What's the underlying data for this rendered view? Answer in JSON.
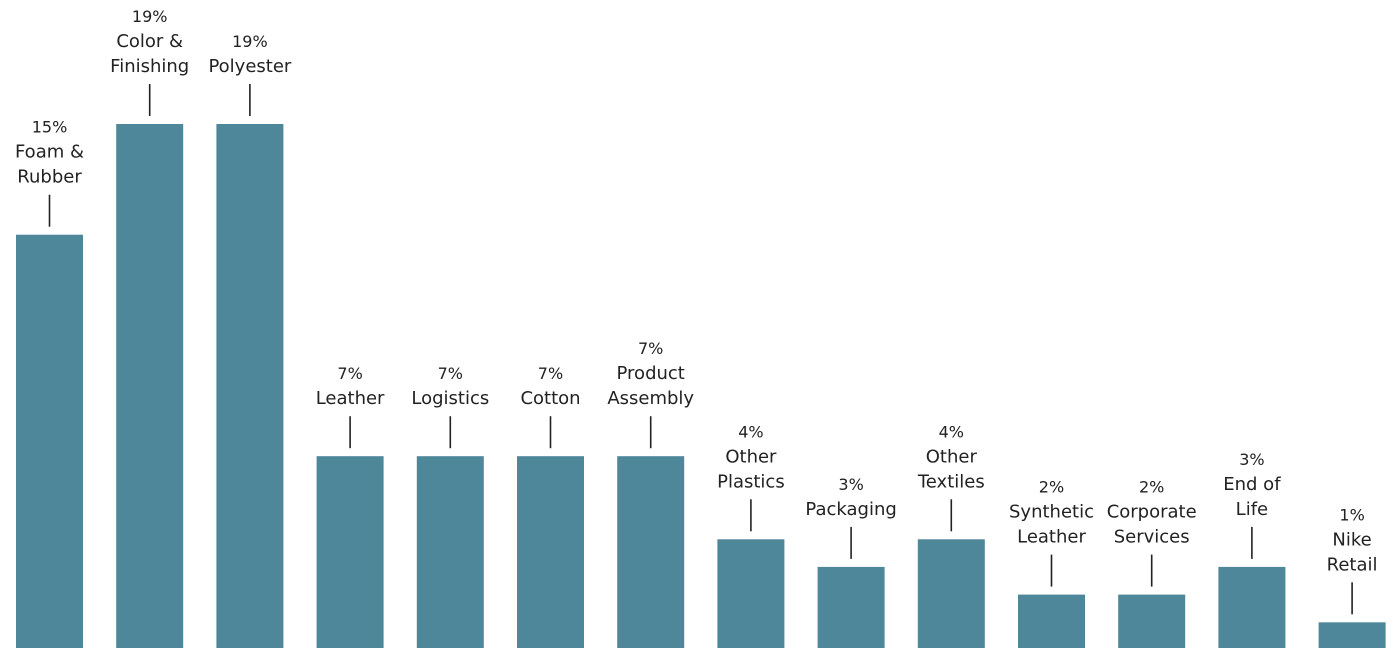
{
  "colors": {
    "bar": "#4e8799",
    "leader": "#222222",
    "text": "#222222"
  },
  "chart_data": {
    "type": "bar",
    "title": "",
    "xlabel": "",
    "ylabel": "",
    "ylim": [
      0,
      19
    ],
    "grid": false,
    "legend": "none",
    "categories": [
      [
        "Foam &",
        "Rubber"
      ],
      [
        "Color &",
        "Finishing"
      ],
      [
        "Polyester"
      ],
      [
        "Leather"
      ],
      [
        "Logistics"
      ],
      [
        "Cotton"
      ],
      [
        "Product",
        "Assembly"
      ],
      [
        "Other",
        "Plastics"
      ],
      [
        "Packaging"
      ],
      [
        "Other",
        "Textiles"
      ],
      [
        "Synthetic",
        "Leather"
      ],
      [
        "Corporate",
        "Services"
      ],
      [
        "End of",
        "Life"
      ],
      [
        "Nike",
        "Retail"
      ]
    ],
    "values": [
      15,
      19,
      19,
      7,
      7,
      7,
      7,
      4,
      3,
      4,
      2,
      2,
      3,
      1
    ],
    "value_labels": [
      "15%",
      "19%",
      "19%",
      "7%",
      "7%",
      "7%",
      "7%",
      "4%",
      "3%",
      "4%",
      "2%",
      "2%",
      "3%",
      "1%"
    ]
  }
}
